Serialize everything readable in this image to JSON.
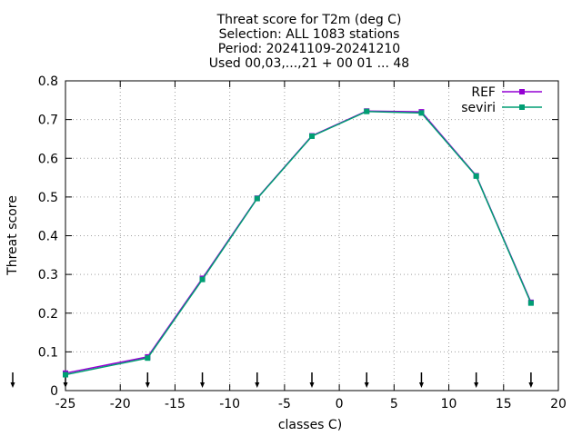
{
  "chart_data": {
    "type": "line",
    "title": [
      "Threat score  for T2m (deg C)",
      "Selection: ALL    1083 stations",
      "Period: 20241109-20241210",
      "Used 00,03,...,21 + 00 01 ... 48"
    ],
    "xlabel": "classes C)",
    "ylabel": "Threat score",
    "xlim": [
      -25,
      20
    ],
    "ylim": [
      0,
      0.8
    ],
    "xticks": [
      -25,
      -20,
      -15,
      -10,
      -5,
      0,
      5,
      10,
      15,
      20
    ],
    "xtick_labels": [
      "-25",
      "-20",
      "-15",
      "-10",
      "-5",
      "0",
      "5",
      "10",
      "15",
      "20"
    ],
    "yticks": [
      0,
      0.1,
      0.2,
      0.3,
      0.4,
      0.5,
      0.6,
      0.7,
      0.8
    ],
    "ytick_labels": [
      "0",
      "0.1",
      "0.2",
      "0.3",
      "0.4",
      "0.5",
      "0.6",
      "0.7",
      "0.8"
    ],
    "grid": true,
    "legend_position": "top-right",
    "x": [
      -25,
      -17.5,
      -12.5,
      -7.5,
      -2.5,
      2.5,
      7.5,
      12.5,
      17.5
    ],
    "series": [
      {
        "name": "REF",
        "color": "#9400d3",
        "values": [
          0.045,
          0.087,
          0.29,
          0.497,
          0.658,
          0.722,
          0.72,
          0.555,
          0.228
        ]
      },
      {
        "name": "seviri",
        "color": "#009e73",
        "values": [
          0.041,
          0.084,
          0.287,
          0.496,
          0.657,
          0.721,
          0.717,
          0.554,
          0.226
        ]
      }
    ],
    "class_markers_x": [
      -25,
      -17.5,
      -12.5,
      -7.5,
      -2.5,
      2.5,
      7.5,
      12.5,
      17.5
    ],
    "class_marker_glyph": "down-arrow-icon"
  }
}
